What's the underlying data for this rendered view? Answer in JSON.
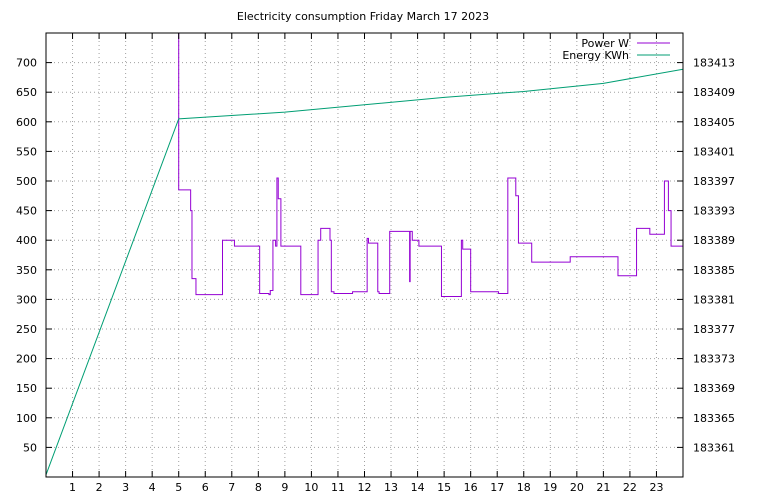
{
  "chart_data": {
    "type": "line",
    "title": "Electricity consumption Friday March 17 2023",
    "grid": true,
    "legend_placement": "top-right",
    "x_ticks": [
      1,
      2,
      3,
      4,
      5,
      6,
      7,
      8,
      9,
      10,
      11,
      12,
      13,
      14,
      15,
      16,
      17,
      18,
      19,
      20,
      21,
      22,
      23
    ],
    "xlim": [
      0,
      24
    ],
    "y_left": {
      "lim": [
        0,
        750
      ],
      "ticks": [
        50,
        100,
        150,
        200,
        250,
        300,
        350,
        400,
        450,
        500,
        550,
        600,
        650,
        700
      ]
    },
    "y_right": {
      "lim": [
        183357,
        183417
      ],
      "ticks": [
        183361,
        183365,
        183369,
        183373,
        183377,
        183381,
        183385,
        183389,
        183393,
        183397,
        183401,
        183405,
        183409,
        183413
      ]
    },
    "series": [
      {
        "name": "Power W",
        "axis": "left",
        "color": "#9400d3",
        "step": true,
        "x": [
          5.0,
          5.0,
          5.0,
          5.45,
          5.5,
          5.65,
          6.6,
          6.65,
          7.05,
          7.1,
          7.2,
          8.0,
          8.05,
          8.4,
          8.45,
          8.55,
          8.65,
          8.7,
          8.75,
          8.85,
          8.9,
          9.0,
          9.6,
          9.65,
          10.25,
          10.35,
          10.7,
          10.75,
          10.8,
          10.85,
          11.5,
          11.55,
          12.1,
          12.15,
          12.5,
          12.55,
          12.9,
          12.95,
          13.7,
          13.72,
          13.75,
          13.8,
          14.05,
          14.3,
          14.6,
          14.9,
          15.0,
          15.65,
          15.7,
          16.0,
          16.05,
          16.8,
          16.9,
          17.0,
          17.05,
          17.4,
          17.45,
          17.7,
          17.8,
          17.85,
          18.3,
          18.35,
          19.7,
          19.75,
          20.3,
          20.85,
          20.9,
          21.55,
          21.6,
          22.2,
          22.25,
          22.7,
          22.75,
          23.2,
          23.3,
          23.45,
          23.55,
          23.9,
          24.0
        ],
        "y": [
          750,
          590,
          485,
          450,
          335,
          308,
          308,
          400,
          400,
          390,
          390,
          390,
          310,
          308,
          315,
          400,
          390,
          505,
          470,
          390,
          390,
          390,
          308,
          308,
          400,
          420,
          400,
          313,
          313,
          310,
          310,
          313,
          403,
          395,
          313,
          310,
          310,
          415,
          330,
          415,
          415,
          400,
          390,
          390,
          390,
          305,
          305,
          400,
          385,
          313,
          313,
          313,
          313,
          313,
          310,
          505,
          505,
          475,
          395,
          395,
          363,
          363,
          363,
          372,
          372,
          372,
          372,
          340,
          340,
          340,
          420,
          420,
          410,
          410,
          500,
          450,
          390,
          390,
          348
        ]
      },
      {
        "name": "Energy KWh",
        "axis": "right",
        "color": "#009e73",
        "step": false,
        "x": [
          0,
          5.0,
          9.0,
          12.0,
          15.0,
          18.0,
          21.0,
          24.0
        ],
        "y": [
          183357.3,
          183405.4,
          183406.3,
          183407.3,
          183408.3,
          183409.1,
          183410.2,
          183412.1
        ]
      }
    ]
  }
}
